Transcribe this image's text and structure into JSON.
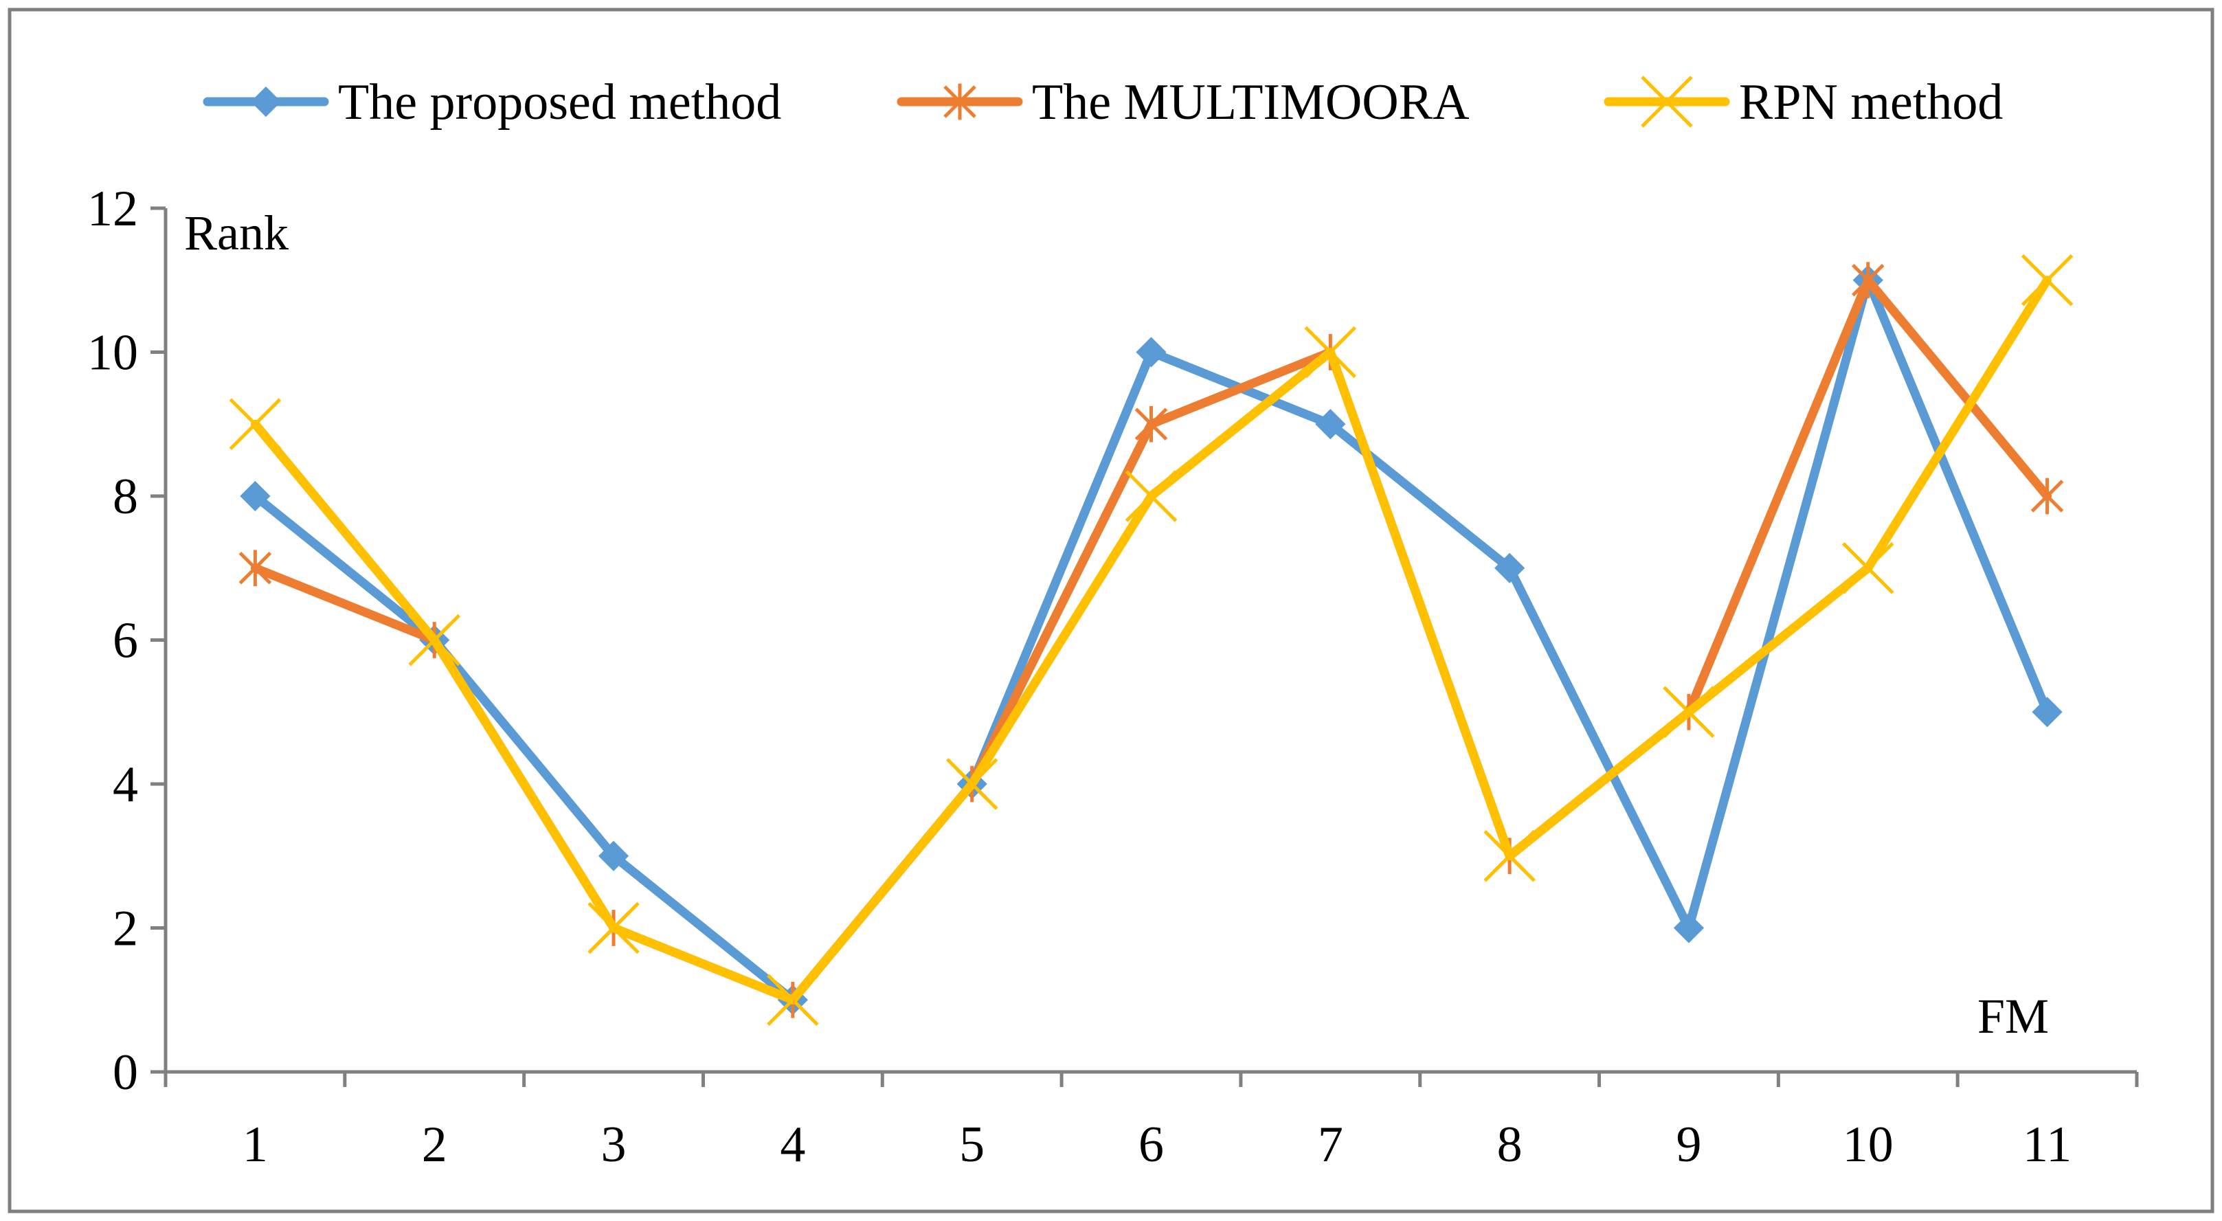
{
  "chart_data": {
    "type": "line",
    "title": "",
    "xlabel": "FM",
    "ylabel": "Rank",
    "categories": [
      "1",
      "2",
      "3",
      "4",
      "5",
      "6",
      "7",
      "8",
      "9",
      "10",
      "11"
    ],
    "ylim": [
      0,
      12
    ],
    "yticks": [
      "0",
      "2",
      "4",
      "6",
      "8",
      "10",
      "12"
    ],
    "grid": false,
    "legend_position": "top",
    "series": [
      {
        "name": "The proposed method",
        "color": "#5B9BD5",
        "marker": "diamond",
        "values": [
          8,
          6,
          3,
          1,
          4,
          10,
          9,
          7,
          2,
          11,
          5
        ]
      },
      {
        "name": "The MULTIMOORA",
        "color": "#ED7D31",
        "marker": "asterisk",
        "values": [
          7,
          6,
          2,
          1,
          4,
          9,
          10,
          3,
          5,
          11,
          8
        ]
      },
      {
        "name": "RPN method",
        "color": "#FFC000",
        "marker": "x",
        "values": [
          9,
          6,
          2,
          1,
          4,
          8,
          10,
          3,
          5,
          7,
          11
        ]
      }
    ]
  }
}
